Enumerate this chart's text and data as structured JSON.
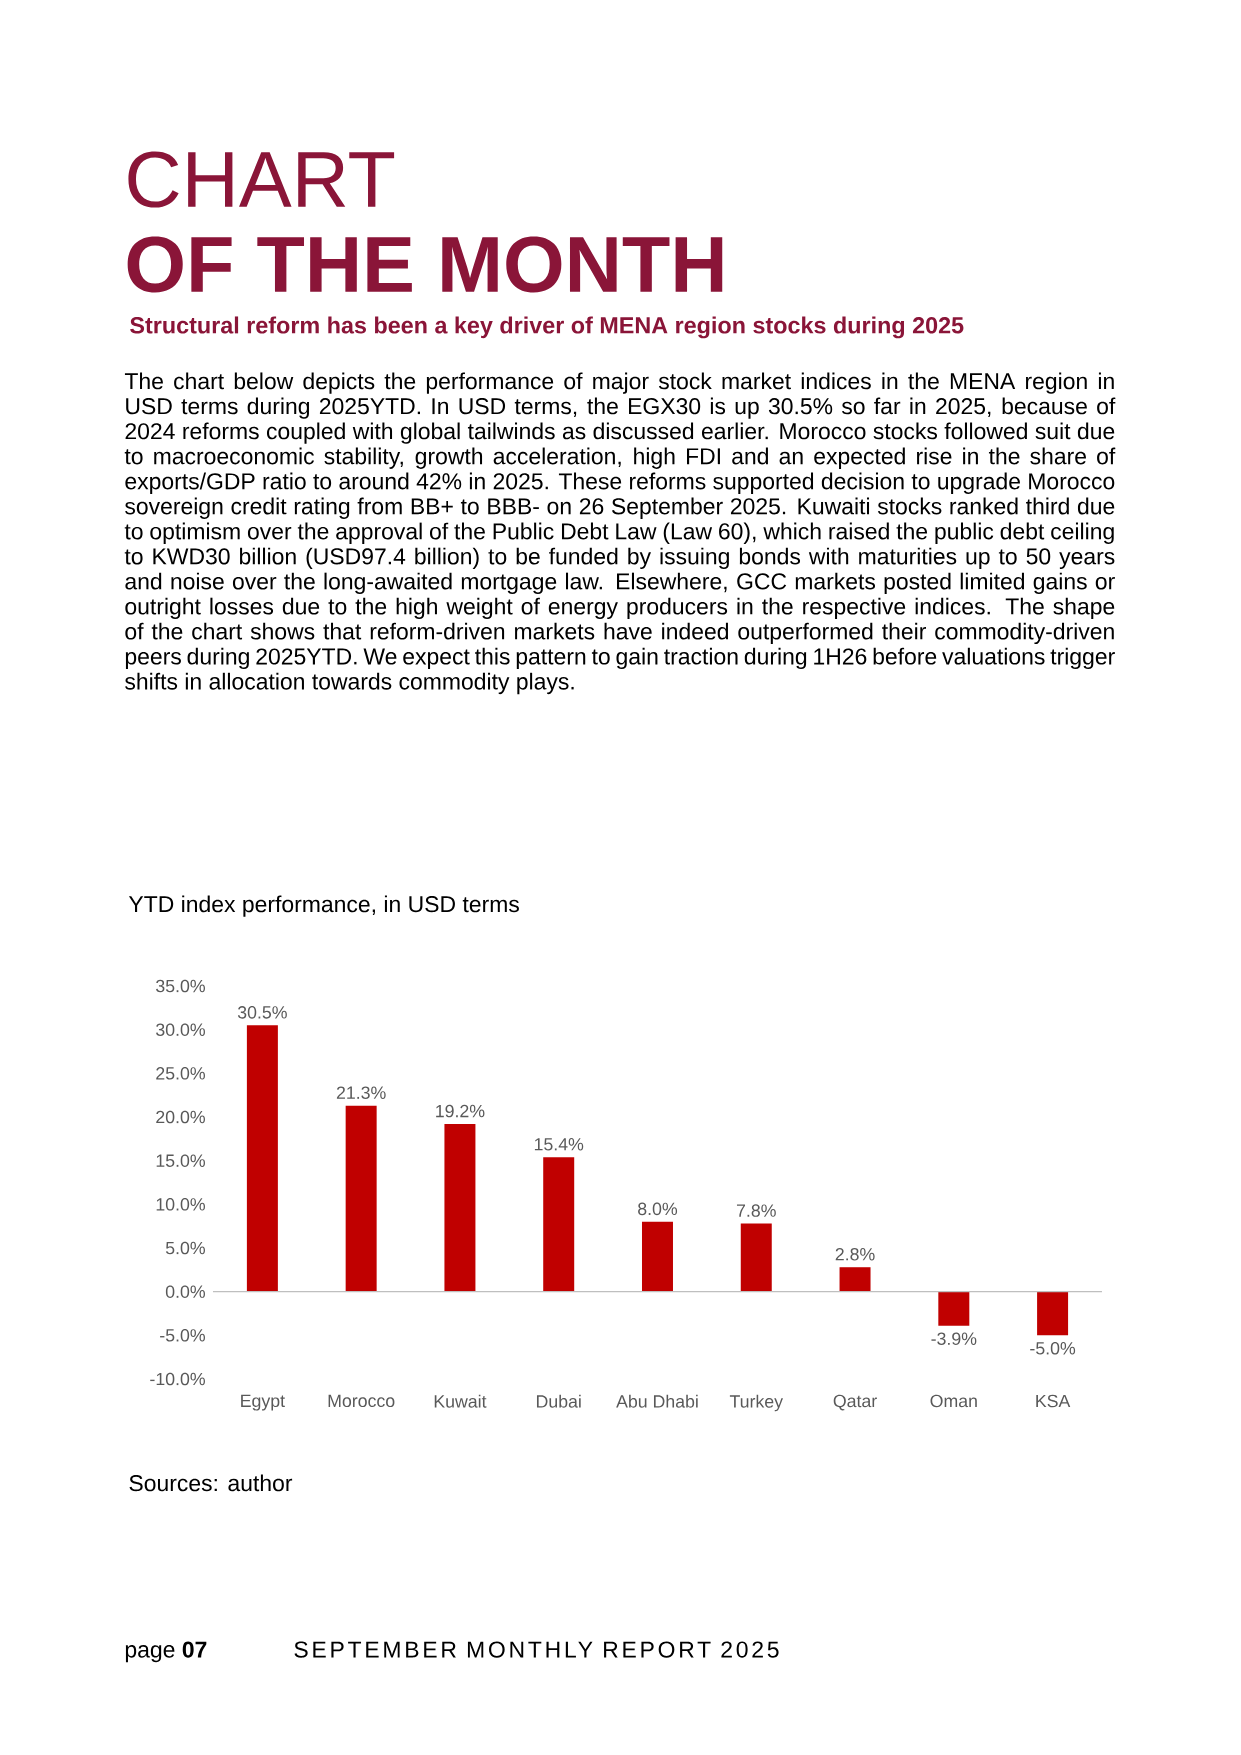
{
  "chart_data": {
    "type": "bar",
    "title": "YTD index performance, in USD terms",
    "annotations": [
      "CHART",
      "OF THE MONTH",
      "Structural reform has been a key driver of MENA region stocks during 2025",
      "The chart below depicts the performance of major stock market indices in the MENA region in USD terms during 2025YTD. In USD terms, the EGX30 is up 30.5% so far in 2025, because of 2024 reforms coupled with global tailwinds as discussed earlier. Morocco stocks followed suit due to macroeconomic stability, growth acceleration, high FDI and an expected rise in the share of exports/GDP ratio to around 42% in 2025. These reforms supported decision to upgrade Morocco sovereign credit rating from BB+ to BBB- on 26 September 2025. Kuwaiti stocks ranked third due to optimism over the approval of the Public Debt Law (Law 60), which raised the public debt ceiling to KWD30 billion (USD97.4 billion) to be funded by issuing bonds with maturities up to 50 years and noise over the long-awaited mortgage law. Elsewhere, GCC markets posted limited gains or outright losses due to the high weight of energy producers in the respective indices. The shape of the chart shows that reform-driven markets have indeed outperformed their commodity-driven peers during 2025YTD. We expect this pattern to gain traction during 1H26 before valuations trigger shifts in allocation towards commodity plays.",
      "Sources: author",
      "page **07**",
      "SEPTEMBER MONTHLY REPORT 2025"
    ],
    "categories": [
      "Egypt",
      "Morocco",
      "Kuwait",
      "Dubai",
      "Abu Dhabi",
      "Turkey",
      "Qatar",
      "Oman",
      "KSA"
    ],
    "values": [
      30.5,
      21.3,
      19.2,
      15.4,
      8.0,
      7.8,
      2.8,
      -3.9,
      -5.0
    ],
    "value_labels": [
      "30.5%",
      "21.3%",
      "19.2%",
      "15.4%",
      "8.0%",
      "7.8%",
      "2.8%",
      "-3.9%",
      "-5.0%"
    ],
    "color": "#c00000",
    "ylim": [
      -10,
      35
    ],
    "yticks": [
      {
        "value": -10,
        "label": "-10.0%"
      },
      {
        "value": -5,
        "label": "-5.0%"
      },
      {
        "value": 0,
        "label": "0.0%"
      },
      {
        "value": 5,
        "label": "5.0%"
      },
      {
        "value": 10,
        "label": "10.0%"
      },
      {
        "value": 15,
        "label": "15.0%"
      },
      {
        "value": 20,
        "label": "20.0%"
      },
      {
        "value": 25,
        "label": "25.0%"
      },
      {
        "value": 30,
        "label": "30.0%"
      },
      {
        "value": 35,
        "label": "35.0%"
      }
    ]
  }
}
